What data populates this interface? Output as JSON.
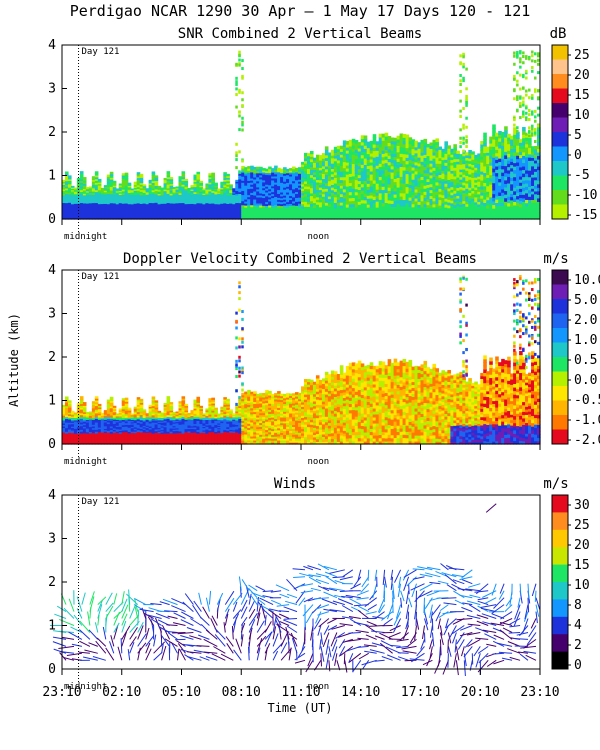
{
  "figure": {
    "title": "Perdigao NCAR 1290  30 Apr —  1 May 17 Days 120 - 121",
    "ylabel": "Altitude (km)",
    "xlabel": "Time (UT)",
    "x_ticks": [
      "23:10",
      "02:10",
      "05:10",
      "08:10",
      "11:10",
      "14:10",
      "17:10",
      "20:10",
      "23:10"
    ],
    "midnight_label": "midnight",
    "noon_label": "noon",
    "day_label": "Day 121"
  },
  "chart_data": [
    {
      "type": "heatmap",
      "title": "SNR Combined 2 Vertical Beams",
      "unit": "dB",
      "ylim": [
        0,
        4
      ],
      "y_ticks": [
        "0",
        "1",
        "2",
        "3",
        "4"
      ],
      "colorbar": {
        "labels": [
          "25",
          "20",
          "15",
          "10",
          "5",
          "0",
          "-5",
          "-10",
          "-15"
        ],
        "colors": [
          "#f2c200",
          "#ffc48c",
          "#ff8c1e",
          "#e60a1e",
          "#46006e",
          "#6e1eb4",
          "#1e32dc",
          "#1496ff",
          "#1ec8c8",
          "#1ee664",
          "#64dc1e",
          "#b4f000"
        ]
      },
      "summary": "Low-level layer below 0.4 km all day; deep enhanced layer 0.3-1.1 km between 08:10 and 11:10; layer reaching 1.8 km from 11:10 to 20:10; broken high echoes near 20:10 and 23:10"
    },
    {
      "type": "heatmap",
      "title": "Doppler Velocity Combined 2 Vertical Beams",
      "unit": "m/s",
      "ylim": [
        0,
        4
      ],
      "y_ticks": [
        "0",
        "1",
        "2",
        "3",
        "4"
      ],
      "colorbar": {
        "labels": [
          "10.0",
          "5.0",
          "2.0",
          "1.0",
          "0.5",
          "0.0",
          "-0.5",
          "-1.0",
          "-2.0"
        ],
        "colors": [
          "#3c0a50",
          "#6e1eb4",
          "#1e32dc",
          "#1e64f0",
          "#1496ff",
          "#1ec8c8",
          "#1ee664",
          "#b4f000",
          "#ffe600",
          "#ffb400",
          "#ff7800",
          "#e60a1e"
        ]
      },
      "summary": "Strong negative velocities near surface 0-0.6 km from 23:10 to 08:10; mixed -1 to +1 m/s in layer up to 1.8 km during daytime"
    },
    {
      "type": "scatter",
      "title": "Winds",
      "unit": "m/s",
      "ylim": [
        0,
        4
      ],
      "y_ticks": [
        "0",
        "1",
        "2",
        "3",
        "4"
      ],
      "colorbar": {
        "labels": [
          "30",
          "25",
          "20",
          "15",
          "10",
          "8",
          "4",
          "2",
          "0"
        ],
        "colors": [
          "#e60a1e",
          "#ff8c1e",
          "#ffc800",
          "#c8e600",
          "#1ee664",
          "#1ec8c8",
          "#1496ff",
          "#1e32dc",
          "#46006e",
          "#000000"
        ]
      },
      "summary": "Wind barbs 0-1.5 km mostly 4-10 m/s; enhanced depth to 2-2.5 km after 11:10; isolated barb near 3.7 km at 21:10"
    }
  ]
}
